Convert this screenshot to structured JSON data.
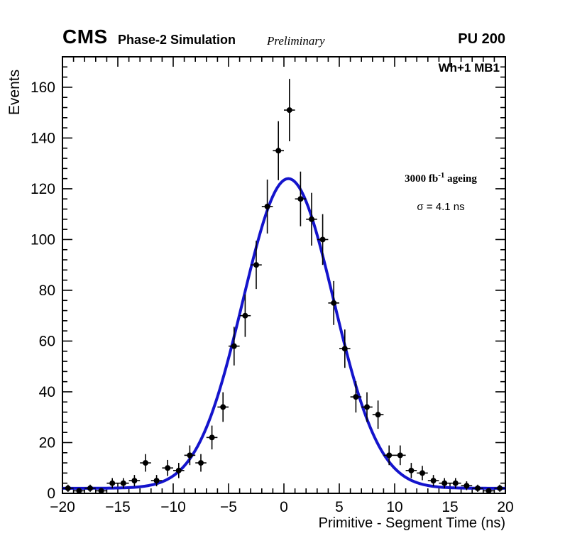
{
  "header": {
    "cms": "CMS",
    "subtitle": "Phase-2 Simulation",
    "preliminary": "Preliminary",
    "pileup": "PU 200"
  },
  "plot": {
    "corner_label": "Wh+1 MB1",
    "lumi_prefix": "3000 fb",
    "lumi_sup": "-1",
    "lumi_suffix": " ageing",
    "sigma_label": "σ = 4.1 ns"
  },
  "chart_data": {
    "type": "scatter",
    "title": "",
    "xlabel": "Primitive - Segment Time (ns)",
    "ylabel": "Events",
    "xlim": [
      -20,
      20
    ],
    "ylim": [
      0,
      172
    ],
    "x_ticks": [
      -20,
      -15,
      -10,
      -5,
      0,
      5,
      10,
      15,
      20
    ],
    "x_minor_step": 1,
    "y_ticks": [
      0,
      20,
      40,
      60,
      80,
      100,
      120,
      140,
      160
    ],
    "y_minor_step": 4,
    "grid": false,
    "legend": "none",
    "marker_color": "#000000",
    "x_error_half_width": 0.5,
    "points": {
      "x": [
        -19.5,
        -18.5,
        -17.5,
        -16.5,
        -15.5,
        -14.5,
        -13.5,
        -12.5,
        -11.5,
        -10.5,
        -9.5,
        -8.5,
        -7.5,
        -6.5,
        -5.5,
        -4.5,
        -3.5,
        -2.5,
        -1.5,
        -0.5,
        0.5,
        1.5,
        2.5,
        3.5,
        4.5,
        5.5,
        6.5,
        7.5,
        8.5,
        9.5,
        10.5,
        11.5,
        12.5,
        13.5,
        14.5,
        15.5,
        16.5,
        17.5,
        18.5,
        19.5
      ],
      "y": [
        2,
        1,
        2,
        1,
        4,
        4,
        5,
        12,
        5,
        10,
        9,
        15,
        12,
        22,
        34,
        58,
        70,
        90,
        113,
        135,
        151,
        116,
        108,
        100,
        75,
        57,
        38,
        34,
        31,
        15,
        15,
        9,
        8,
        5,
        4,
        4,
        3,
        2,
        1,
        2
      ]
    },
    "fit": {
      "type": "gaussian",
      "amplitude": 122,
      "mean": 0.4,
      "sigma": 4.1,
      "offset": 2,
      "color": "#1414cc",
      "label": "σ = 4.1 ns"
    }
  }
}
